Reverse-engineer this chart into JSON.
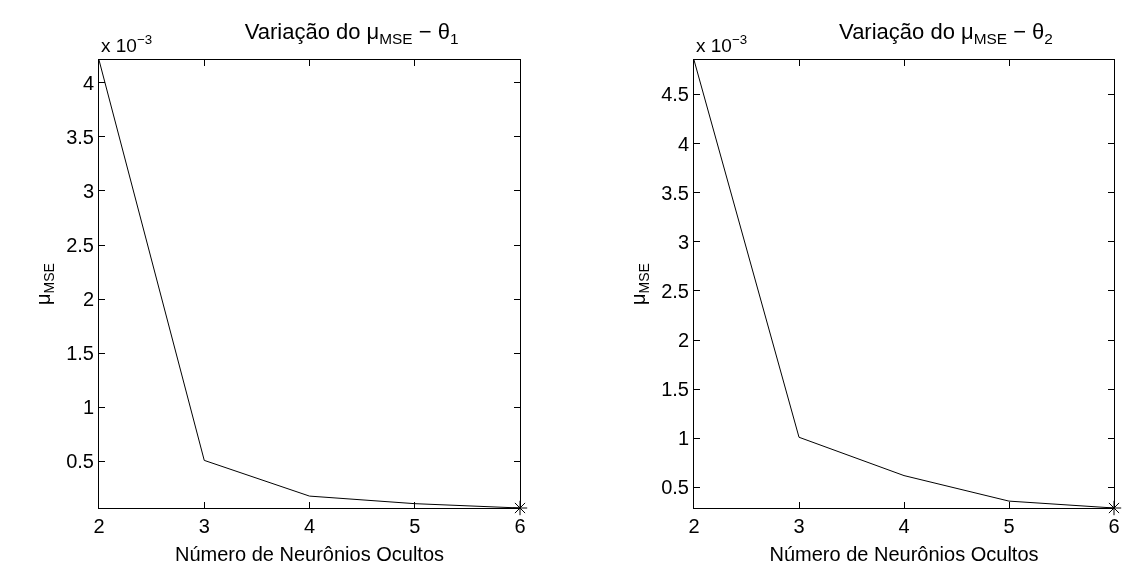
{
  "chart_data": [
    {
      "type": "line",
      "title": "Variação do μ$_{MSE}$ − θ$_{1}$",
      "xlabel": "Número de Neurônios Ocultos",
      "ylabel": "μ$_{MSE}$",
      "annotations": [
        "x 10$^{−3}$"
      ],
      "x": [
        2,
        3,
        4,
        5,
        6
      ],
      "xlim": [
        2,
        6
      ],
      "xticks": [
        2,
        3,
        4,
        5,
        6
      ],
      "ylim": [
        0.07,
        4.21
      ],
      "yticks": [
        0.5,
        1,
        1.5,
        2,
        2.5,
        3,
        3.5,
        4
      ],
      "grid": false,
      "marker": "none",
      "line_style": "solid",
      "series": [
        {
          "color": "#000000",
          "values": [
            4.21,
            0.51,
            0.18,
            0.11,
            0.07
          ]
        },
        {
          "type": "scatter",
          "marker": "cross",
          "color": "#000000",
          "x": [
            6
          ],
          "values": [
            0.07
          ]
        }
      ]
    },
    {
      "type": "line",
      "title": "Variação do μ$_{MSE}$ − θ$_{2}$",
      "xlabel": "Número de Neurônios Ocultos",
      "ylabel": "μ$_{MSE}$",
      "annotations": [
        "x 10$^{−3}$"
      ],
      "x": [
        2,
        3,
        4,
        5,
        6
      ],
      "xlim": [
        2,
        6
      ],
      "xticks": [
        2,
        3,
        4,
        5,
        6
      ],
      "ylim": [
        0.29,
        4.85
      ],
      "yticks": [
        0.5,
        1,
        1.5,
        2,
        2.5,
        3,
        3.5,
        4,
        4.5
      ],
      "grid": false,
      "marker": "none",
      "line_style": "solid",
      "series": [
        {
          "color": "#000000",
          "values": [
            4.85,
            1.01,
            0.62,
            0.36,
            0.29
          ]
        },
        {
          "type": "scatter",
          "marker": "cross",
          "color": "#000000",
          "x": [
            6
          ],
          "values": [
            0.29
          ]
        }
      ]
    }
  ]
}
